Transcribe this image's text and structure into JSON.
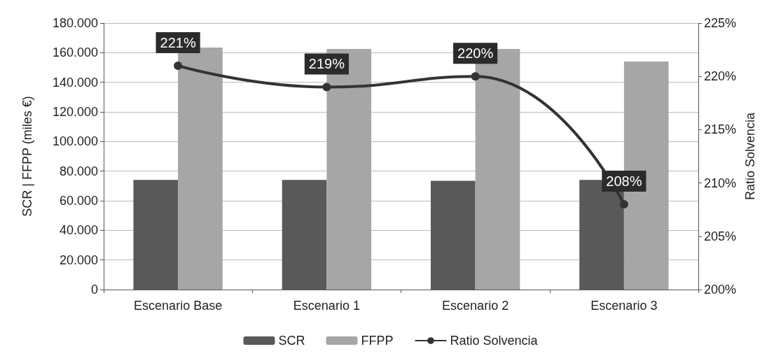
{
  "chart_data": {
    "type": "bar",
    "categories": [
      "Escenario Base",
      "Escenario 1",
      "Escenario 2",
      "Escenario 3"
    ],
    "ylabel": "SCR | FFPP (miles €)",
    "y2label": "Ratio Solvencia",
    "series": [
      {
        "name": "SCR",
        "color": "#595959",
        "values": [
          74000,
          74000,
          73500,
          74000
        ]
      },
      {
        "name": "FFPP",
        "color": "#a6a6a6",
        "values": [
          163500,
          162500,
          162500,
          154000
        ]
      },
      {
        "name": "Ratio Solvencia",
        "type": "line",
        "axis": "y2",
        "color": "#333333",
        "values": [
          221,
          219,
          220,
          208
        ],
        "value_labels": [
          "221%",
          "219%",
          "220%",
          "208%"
        ],
        "marker": "circle"
      }
    ],
    "ylim": [
      0,
      180000
    ],
    "yticks": [
      {
        "value": 0,
        "label": "0"
      },
      {
        "value": 20000,
        "label": "20.000"
      },
      {
        "value": 40000,
        "label": "40.000"
      },
      {
        "value": 60000,
        "label": "60.000"
      },
      {
        "value": 80000,
        "label": "80.000"
      },
      {
        "value": 100000,
        "label": "100.000"
      },
      {
        "value": 120000,
        "label": "120.000"
      },
      {
        "value": 140000,
        "label": "140.000"
      },
      {
        "value": 160000,
        "label": "160.000"
      },
      {
        "value": 180000,
        "label": "180.000"
      }
    ],
    "y2lim": [
      200,
      225
    ],
    "y2ticks": [
      {
        "value": 200,
        "label": "200%"
      },
      {
        "value": 205,
        "label": "205%"
      },
      {
        "value": 210,
        "label": "210%"
      },
      {
        "value": 215,
        "label": "215%"
      },
      {
        "value": 220,
        "label": "220%"
      },
      {
        "value": 225,
        "label": "225%"
      }
    ],
    "grid": "y",
    "legend": "bottom"
  }
}
